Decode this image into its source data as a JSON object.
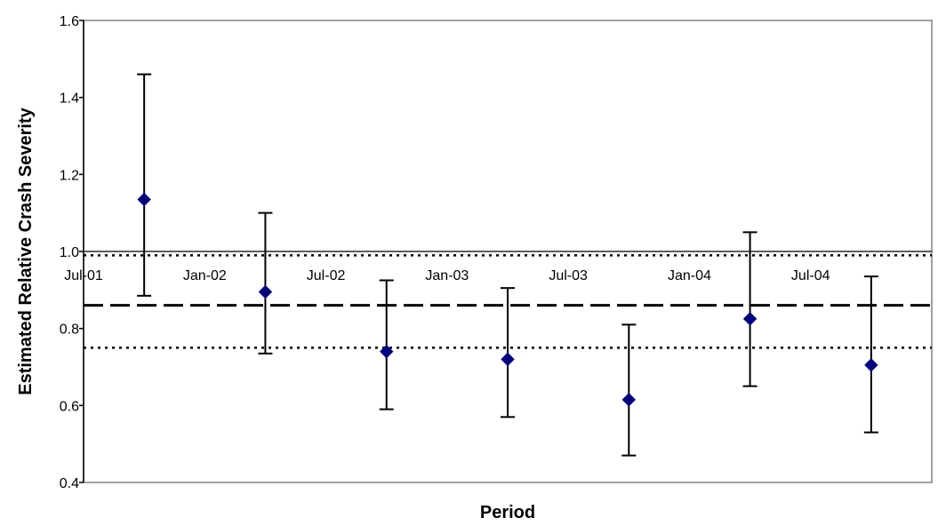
{
  "chart_data": {
    "type": "scatter",
    "title": "",
    "xlabel": "Period",
    "ylabel": "Estimated Relative Crash Severity",
    "ylim": [
      0.4,
      1.6
    ],
    "yticks": [
      "0.4",
      "0.6",
      "0.8",
      "1.0",
      "1.2",
      "1.4",
      "1.6"
    ],
    "x_tick_labels": [
      "Jul-01",
      "Jan-02",
      "Jul-02",
      "Jan-03",
      "Jul-03",
      "Jan-04",
      "Jul-04"
    ],
    "grid": false,
    "legend": "none",
    "marker_color": "#000080",
    "points": [
      {
        "value": 1.135,
        "lower": 0.885,
        "upper": 1.46
      },
      {
        "value": 0.895,
        "lower": 0.735,
        "upper": 1.1
      },
      {
        "value": 0.74,
        "lower": 0.59,
        "upper": 0.925
      },
      {
        "value": 0.72,
        "lower": 0.57,
        "upper": 0.905
      },
      {
        "value": 0.615,
        "lower": 0.47,
        "upper": 0.81
      },
      {
        "value": 0.825,
        "lower": 0.65,
        "upper": 1.05
      },
      {
        "value": 0.705,
        "lower": 0.53,
        "upper": 0.935
      }
    ],
    "reference_lines": [
      {
        "value": 1.0,
        "style": "solid"
      },
      {
        "value": 0.99,
        "style": "dotted"
      },
      {
        "value": 0.86,
        "style": "dashed"
      },
      {
        "value": 0.75,
        "style": "dotted"
      }
    ]
  }
}
